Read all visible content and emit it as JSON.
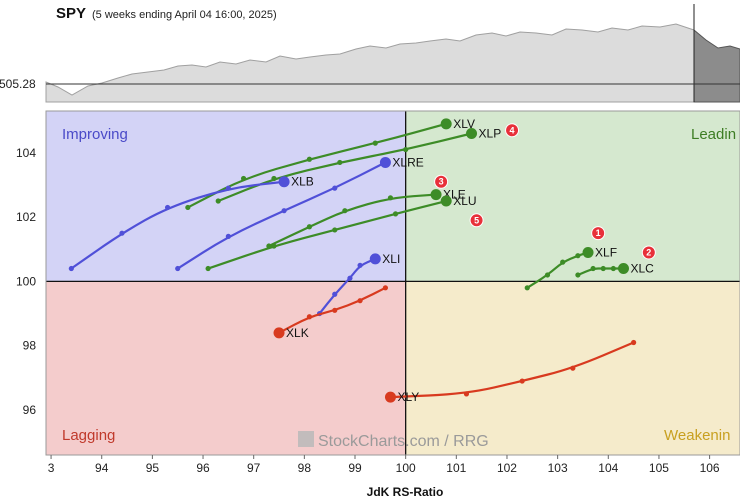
{
  "header": {
    "symbol": "SPY",
    "subtitle": "(5 weeks ending April 04 16:00, 2025)",
    "price_label": "505.28"
  },
  "watermark": "StockCharts.com / RRG",
  "colors": {
    "improving": "#d3d3f6",
    "leading": "#d5e8cf",
    "lagging": "#f4cccc",
    "weakening": "#f5ebcb",
    "blue": "#5050d8",
    "green": "#3d8c27",
    "red": "#d83a1f",
    "marker": "#e8303a"
  },
  "chart_data": {
    "type": "scatter",
    "title": "",
    "xlabel": "JdK RS-Ratio",
    "ylabel": "",
    "xlim": [
      92.9,
      106.6
    ],
    "ylim": [
      94.6,
      105.3
    ],
    "x_ticks": [
      "3",
      "94",
      "95",
      "96",
      "97",
      "98",
      "99",
      "100",
      "101",
      "102",
      "103",
      "104",
      "105",
      "106"
    ],
    "y_ticks": [
      "96",
      "98",
      "100",
      "102",
      "104"
    ],
    "center": [
      100,
      100
    ],
    "grid": false,
    "quadrants": {
      "improving": "Improving",
      "leading": "Leadin",
      "lagging": "Lagging",
      "weakening": "Weakenin"
    },
    "series": [
      {
        "name": "XLV",
        "color": "green",
        "points": [
          [
            95.7,
            102.3
          ],
          [
            96.8,
            103.2
          ],
          [
            98.1,
            103.8
          ],
          [
            99.4,
            104.3
          ],
          [
            100.8,
            104.9
          ]
        ]
      },
      {
        "name": "XLP",
        "color": "green",
        "points": [
          [
            96.3,
            102.5
          ],
          [
            97.4,
            103.2
          ],
          [
            98.7,
            103.7
          ],
          [
            100.0,
            104.1
          ],
          [
            101.3,
            104.6
          ]
        ]
      },
      {
        "name": "XLRE",
        "color": "blue",
        "points": [
          [
            95.5,
            100.4
          ],
          [
            96.5,
            101.4
          ],
          [
            97.6,
            102.2
          ],
          [
            98.6,
            102.9
          ],
          [
            99.6,
            103.7
          ]
        ]
      },
      {
        "name": "XLB",
        "color": "blue",
        "points": [
          [
            93.4,
            100.4
          ],
          [
            94.4,
            101.5
          ],
          [
            95.3,
            102.3
          ],
          [
            96.5,
            102.9
          ],
          [
            97.6,
            103.1
          ]
        ]
      },
      {
        "name": "XLE",
        "color": "green",
        "points": [
          [
            97.3,
            101.1
          ],
          [
            98.1,
            101.7
          ],
          [
            98.8,
            102.2
          ],
          [
            99.7,
            102.6
          ],
          [
            100.6,
            102.7
          ]
        ]
      },
      {
        "name": "XLU",
        "color": "green",
        "points": [
          [
            96.1,
            100.4
          ],
          [
            97.4,
            101.1
          ],
          [
            98.6,
            101.6
          ],
          [
            99.8,
            102.1
          ],
          [
            100.8,
            102.5
          ]
        ]
      },
      {
        "name": "XLI",
        "color": "blue",
        "points": [
          [
            98.3,
            99.0
          ],
          [
            98.6,
            99.6
          ],
          [
            98.9,
            100.1
          ],
          [
            99.1,
            100.5
          ],
          [
            99.4,
            100.7
          ]
        ]
      },
      {
        "name": "XLF",
        "color": "green",
        "points": [
          [
            102.4,
            99.8
          ],
          [
            102.8,
            100.2
          ],
          [
            103.1,
            100.6
          ],
          [
            103.4,
            100.8
          ],
          [
            103.6,
            100.9
          ]
        ]
      },
      {
        "name": "XLC",
        "color": "green",
        "points": [
          [
            103.4,
            100.2
          ],
          [
            103.7,
            100.4
          ],
          [
            103.9,
            100.4
          ],
          [
            104.1,
            100.4
          ],
          [
            104.3,
            100.4
          ]
        ]
      },
      {
        "name": "XLK",
        "color": "red",
        "points": [
          [
            99.6,
            99.8
          ],
          [
            99.1,
            99.4
          ],
          [
            98.6,
            99.1
          ],
          [
            98.1,
            98.9
          ],
          [
            97.5,
            98.4
          ]
        ]
      },
      {
        "name": "XLY",
        "color": "red",
        "points": [
          [
            104.5,
            98.1
          ],
          [
            103.3,
            97.3
          ],
          [
            102.3,
            96.9
          ],
          [
            101.2,
            96.5
          ],
          [
            99.7,
            96.4
          ]
        ]
      }
    ],
    "markers": [
      {
        "label": "1",
        "x": 103.8,
        "y": 101.5
      },
      {
        "label": "2",
        "x": 104.8,
        "y": 100.9
      },
      {
        "label": "3",
        "x": 100.7,
        "y": 103.1
      },
      {
        "label": "4",
        "x": 102.1,
        "y": 104.7
      },
      {
        "label": "5",
        "x": 101.4,
        "y": 101.9
      }
    ]
  }
}
